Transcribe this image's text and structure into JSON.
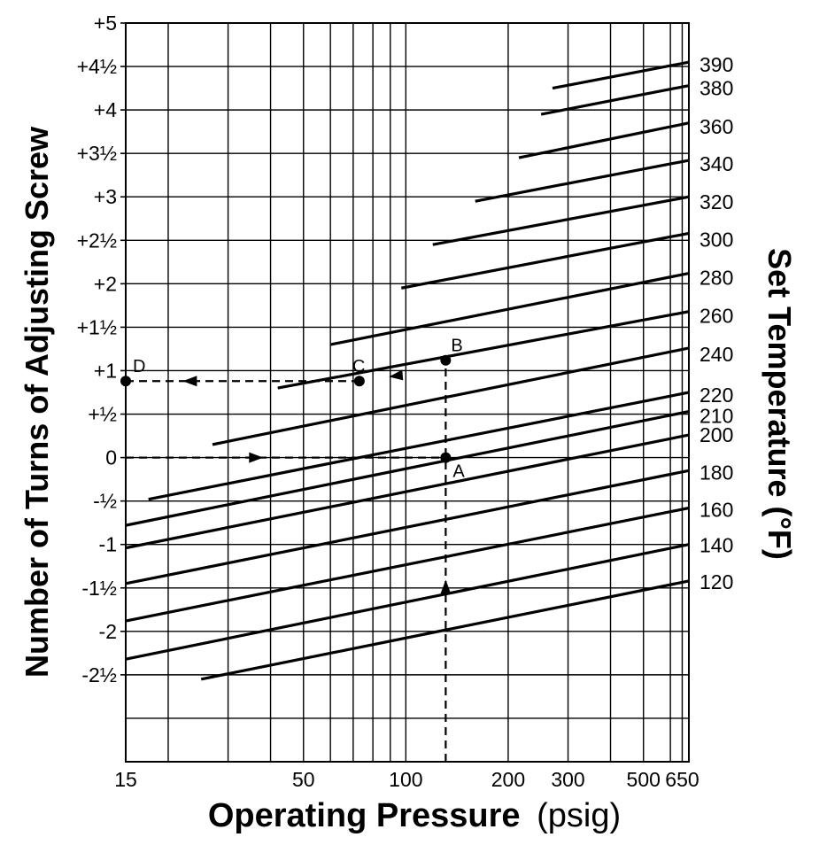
{
  "chart_data": {
    "type": "line",
    "x_scale": "log",
    "xlim": [
      15,
      680
    ],
    "ylim": [
      -3.5,
      5
    ],
    "grid": true,
    "ylabel": "Number of Turns of Adjusting Screw",
    "xlabel_bold": "Operating Pressure",
    "xlabel_unit": "(psig)",
    "right_label": "Set Temperature (°F)",
    "x_ticks": [
      15,
      50,
      100,
      200,
      300,
      500,
      650
    ],
    "x_gridlines": [
      15,
      20,
      30,
      40,
      50,
      60,
      70,
      80,
      90,
      100,
      200,
      300,
      400,
      500,
      600,
      650
    ],
    "y_ticks": [
      {
        "value": 5,
        "label": "+5"
      },
      {
        "value": 4.5,
        "label": "+4½"
      },
      {
        "value": 4,
        "label": "+4"
      },
      {
        "value": 3.5,
        "label": "+3½"
      },
      {
        "value": 3,
        "label": "+3"
      },
      {
        "value": 2.5,
        "label": "+2½"
      },
      {
        "value": 2,
        "label": "+2"
      },
      {
        "value": 1.5,
        "label": "+1½"
      },
      {
        "value": 1,
        "label": "+1"
      },
      {
        "value": 0.5,
        "label": "+½"
      },
      {
        "value": 0,
        "label": "0"
      },
      {
        "value": -0.5,
        "label": "-½"
      },
      {
        "value": -1,
        "label": "-1"
      },
      {
        "value": -1.5,
        "label": "-1½"
      },
      {
        "value": -2,
        "label": "-2"
      },
      {
        "value": -2.5,
        "label": "-2½"
      }
    ],
    "series": [
      {
        "name": "390",
        "x": [
          270,
          680
        ],
        "y": [
          4.25,
          4.55
        ]
      },
      {
        "name": "380",
        "x": [
          250,
          680
        ],
        "y": [
          3.95,
          4.28
        ]
      },
      {
        "name": "360",
        "x": [
          215,
          680
        ],
        "y": [
          3.45,
          3.85
        ]
      },
      {
        "name": "340",
        "x": [
          160,
          680
        ],
        "y": [
          2.95,
          3.42
        ]
      },
      {
        "name": "320",
        "x": [
          120,
          680
        ],
        "y": [
          2.45,
          3.0
        ]
      },
      {
        "name": "300",
        "x": [
          97,
          680
        ],
        "y": [
          1.95,
          2.58
        ]
      },
      {
        "name": "280",
        "x": [
          60,
          680
        ],
        "y": [
          1.3,
          2.12
        ]
      },
      {
        "name": "260",
        "x": [
          42,
          680
        ],
        "y": [
          0.8,
          1.68
        ]
      },
      {
        "name": "240",
        "x": [
          27,
          680
        ],
        "y": [
          0.15,
          1.26
        ]
      },
      {
        "name": "220",
        "x": [
          17.5,
          680
        ],
        "y": [
          -0.48,
          0.75
        ]
      },
      {
        "name": "210",
        "x": [
          15,
          680
        ],
        "y": [
          -0.78,
          0.53
        ]
      },
      {
        "name": "200",
        "x": [
          15,
          680
        ],
        "y": [
          -1.04,
          0.26
        ]
      },
      {
        "name": "180",
        "x": [
          15,
          680
        ],
        "y": [
          -1.45,
          -0.15
        ]
      },
      {
        "name": "160",
        "x": [
          15,
          680
        ],
        "y": [
          -1.88,
          -0.58
        ]
      },
      {
        "name": "140",
        "x": [
          15,
          680
        ],
        "y": [
          -2.32,
          -1.0
        ]
      },
      {
        "name": "120",
        "x": [
          25,
          680
        ],
        "y": [
          -2.55,
          -1.42
        ]
      }
    ],
    "right_labels": [
      {
        "label": "390",
        "y": 4.52
      },
      {
        "label": "380",
        "y": 4.25
      },
      {
        "label": "360",
        "y": 3.81
      },
      {
        "label": "340",
        "y": 3.38
      },
      {
        "label": "320",
        "y": 2.94
      },
      {
        "label": "300",
        "y": 2.51
      },
      {
        "label": "280",
        "y": 2.07
      },
      {
        "label": "260",
        "y": 1.63
      },
      {
        "label": "240",
        "y": 1.19
      },
      {
        "label": "220",
        "y": 0.72
      },
      {
        "label": "210",
        "y": 0.48
      },
      {
        "label": "200",
        "y": 0.26
      },
      {
        "label": "180",
        "y": -0.17
      },
      {
        "label": "160",
        "y": -0.6
      },
      {
        "label": "140",
        "y": -1.01
      },
      {
        "label": "120",
        "y": -1.43
      }
    ],
    "points": [
      {
        "label": "A",
        "x": 131,
        "y": 0
      },
      {
        "label": "B",
        "x": 131,
        "y": 1.12
      },
      {
        "label": "C",
        "x": 73,
        "y": 0.88
      },
      {
        "label": "D",
        "x": 15,
        "y": 0.88
      }
    ]
  }
}
